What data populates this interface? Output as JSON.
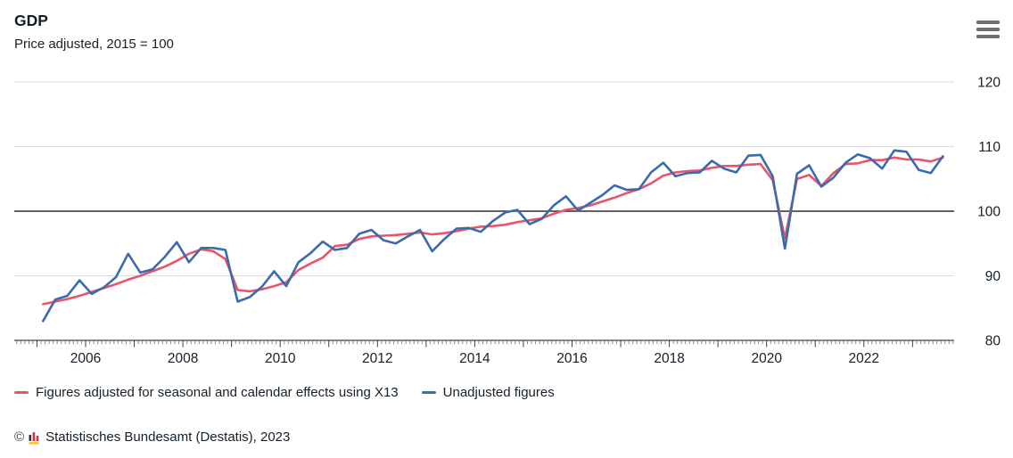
{
  "header": {
    "title": "GDP",
    "subtitle": "Price adjusted, 2015 = 100",
    "menu_icon": "hamburger-menu"
  },
  "legend": {
    "items": [
      {
        "label": "Figures adjusted for seasonal and calendar effects using X13",
        "color": "#ea546b"
      },
      {
        "label": "Unadjusted figures",
        "color": "#3a6bab"
      }
    ]
  },
  "footer": {
    "copyright_symbol": "©",
    "logo_icon": "destatis-bar-chart-logo",
    "text": "Statistisches Bundesamt (Destatis), 2023"
  },
  "chart_data": {
    "type": "line",
    "title": "GDP",
    "subtitle": "Price adjusted, 2015 = 100",
    "grid": "horizontal",
    "legend_position": "bottom",
    "y_axis_side": "right",
    "ylim": [
      80,
      122
    ],
    "y_ticks": [
      80,
      90,
      100,
      110,
      120
    ],
    "baseline_value": 100,
    "x_start_year": 2005,
    "x_period": "quarterly",
    "x_minor_ticks": "monthly",
    "x_tick_labels": [
      "2006",
      "2008",
      "2010",
      "2012",
      "2014",
      "2016",
      "2018",
      "2020",
      "2022"
    ],
    "x_range_years": [
      2004.55,
      2023.85
    ],
    "colors": {
      "gridline": "#dcdcdc",
      "baseline": "#2f2f2f",
      "axis": "#3c3c3c",
      "minor_tick": "#8a8a8a"
    },
    "series": [
      {
        "name": "Figures adjusted for seasonal and calendar effects using X13",
        "color": "#ea546b",
        "start": "2005-Q1",
        "values": [
          85.6,
          86.0,
          86.4,
          86.9,
          87.5,
          88.1,
          88.7,
          89.4,
          90.0,
          90.7,
          91.4,
          92.3,
          93.4,
          94.1,
          93.8,
          92.6,
          87.8,
          87.6,
          87.9,
          88.4,
          89.0,
          90.9,
          91.9,
          92.8,
          94.6,
          94.8,
          95.7,
          96.1,
          96.2,
          96.3,
          96.5,
          96.7,
          96.4,
          96.6,
          96.9,
          97.3,
          97.6,
          97.7,
          97.9,
          98.3,
          98.6,
          98.9,
          99.6,
          100.2,
          100.5,
          100.9,
          101.5,
          102.1,
          102.8,
          103.4,
          104.3,
          105.5,
          106.0,
          106.2,
          106.3,
          106.7,
          107.0,
          107.0,
          107.2,
          107.3,
          104.8,
          95.8,
          105.0,
          105.6,
          103.9,
          105.9,
          107.3,
          107.4,
          107.9,
          107.9,
          108.3,
          108.0,
          108.0,
          107.7,
          108.3
        ]
      },
      {
        "name": "Unadjusted figures",
        "color": "#3a6bab",
        "start": "2005-Q1",
        "values": [
          83.0,
          86.3,
          86.9,
          89.3,
          87.2,
          88.2,
          89.8,
          93.4,
          90.5,
          91.0,
          92.9,
          95.2,
          92.1,
          94.3,
          94.3,
          94.0,
          86.0,
          86.7,
          88.3,
          90.7,
          88.4,
          92.1,
          93.5,
          95.3,
          94.0,
          94.3,
          96.5,
          97.1,
          95.5,
          95.0,
          96.1,
          97.1,
          93.8,
          95.7,
          97.3,
          97.4,
          96.8,
          98.5,
          99.8,
          100.2,
          98.0,
          98.8,
          100.9,
          102.3,
          100.1,
          101.3,
          102.5,
          104.0,
          103.3,
          103.4,
          106.0,
          107.5,
          105.4,
          105.9,
          106.0,
          107.8,
          106.6,
          106.0,
          108.6,
          108.7,
          105.4,
          94.2,
          105.8,
          107.1,
          103.8,
          105.2,
          107.5,
          108.8,
          108.2,
          106.6,
          109.4,
          109.2,
          106.4,
          105.9,
          108.5
        ]
      }
    ]
  }
}
